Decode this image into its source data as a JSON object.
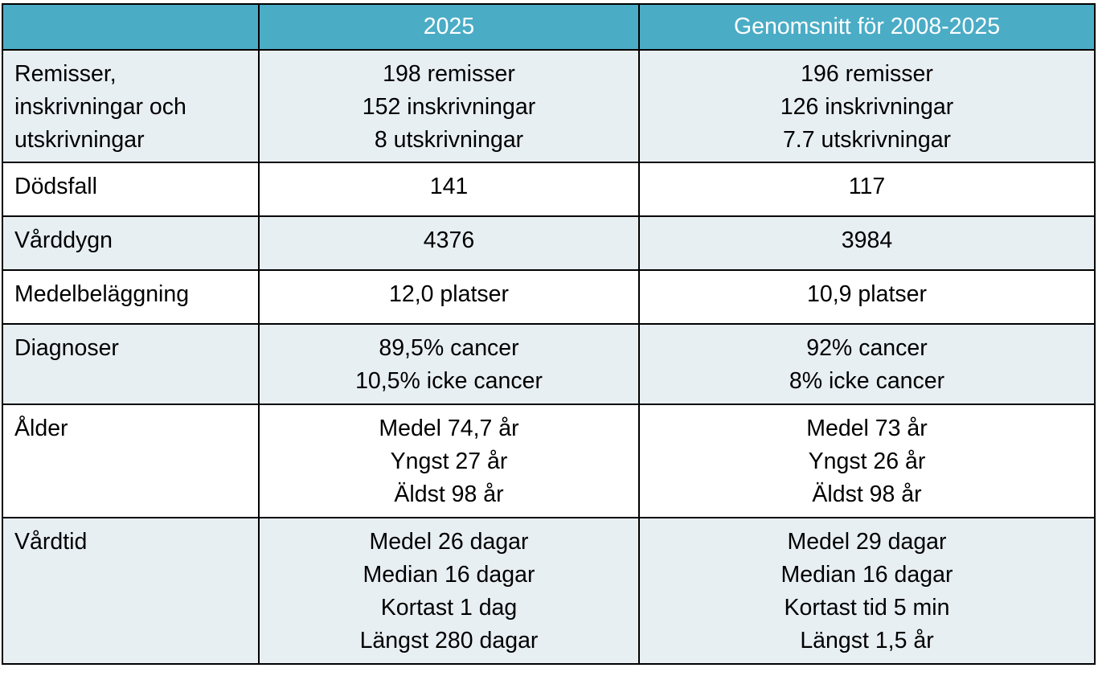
{
  "table": {
    "headers": [
      "",
      "2025",
      "Genomsnitt för 2008-2025"
    ],
    "rows": [
      {
        "label": [
          "Remisser,",
          "inskrivningar och",
          "utskrivningar"
        ],
        "y2025": [
          "198 remisser",
          "152 inskrivningar",
          "8 utskrivningar"
        ],
        "avg": [
          "196 remisser",
          "126 inskrivningar",
          "7.7 utskrivningar"
        ]
      },
      {
        "label": [
          "Dödsfall"
        ],
        "y2025": [
          "141"
        ],
        "avg": [
          "117"
        ]
      },
      {
        "label": [
          "Vårddygn"
        ],
        "y2025": [
          "4376"
        ],
        "avg": [
          "3984"
        ]
      },
      {
        "label": [
          "Medelbeläggning"
        ],
        "y2025": [
          "12,0 platser"
        ],
        "avg": [
          "10,9 platser"
        ]
      },
      {
        "label": [
          "Diagnoser"
        ],
        "y2025": [
          "89,5% cancer",
          "10,5% icke cancer"
        ],
        "avg": [
          "92% cancer",
          "8% icke cancer"
        ]
      },
      {
        "label": [
          "Ålder"
        ],
        "y2025": [
          "Medel 74,7 år",
          "Yngst 27 år",
          "Äldst 98 år"
        ],
        "avg": [
          "Medel 73 år",
          "Yngst 26 år",
          "Äldst 98 år"
        ]
      },
      {
        "label": [
          "Vårdtid"
        ],
        "y2025": [
          "Medel 26 dagar",
          "Median 16 dagar",
          "Kortast 1 dag",
          "Längst 280 dagar"
        ],
        "avg": [
          "Medel 29 dagar",
          "Median 16 dagar",
          "Kortast tid 5 min",
          "Längst 1,5 år"
        ]
      }
    ]
  },
  "colors": {
    "header_bg": "#4bacc6",
    "shaded_row_bg": "#e8eff3",
    "plain_row_bg": "#ffffff",
    "border": "#000000"
  }
}
